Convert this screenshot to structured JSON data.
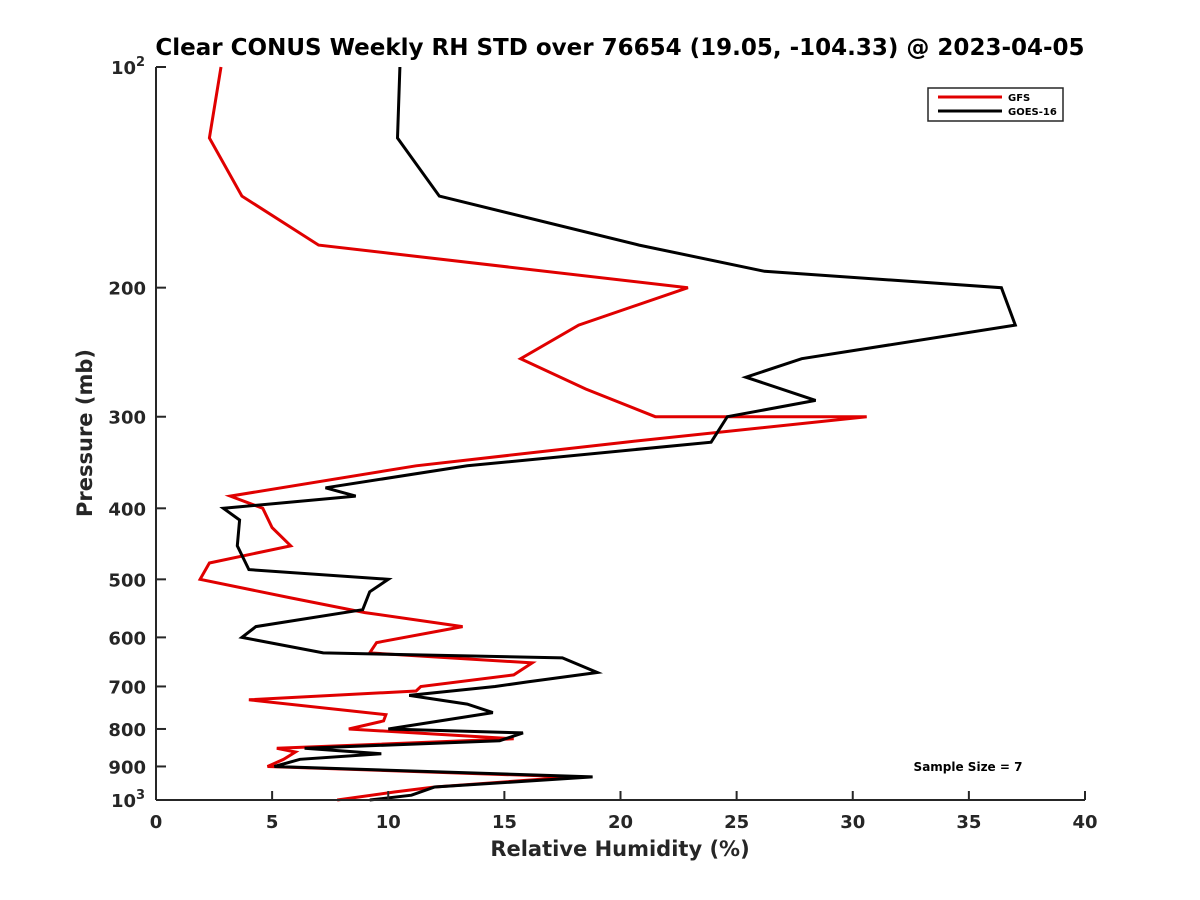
{
  "chart_data": {
    "type": "line",
    "title": "Clear CONUS Weekly RH STD over 76654 (19.05, -104.33) @ 2023-04-05",
    "xlabel": "Relative Humidity (%)",
    "ylabel": "Pressure (mb)",
    "xlim": [
      0,
      40
    ],
    "ylim": [
      100,
      1000
    ],
    "yscale": "log",
    "y_reversed": true,
    "grid": false,
    "legend_position": "top-right",
    "annotation": "Sample Size = 7",
    "x_ticks": [
      {
        "value": 0,
        "label": "0"
      },
      {
        "value": 5,
        "label": "5"
      },
      {
        "value": 10,
        "label": "10"
      },
      {
        "value": 15,
        "label": "15"
      },
      {
        "value": 20,
        "label": "20"
      },
      {
        "value": 25,
        "label": "25"
      },
      {
        "value": 30,
        "label": "30"
      },
      {
        "value": 35,
        "label": "35"
      },
      {
        "value": 40,
        "label": "40"
      }
    ],
    "y_ticks": [
      {
        "value": 100,
        "label": "10",
        "sup": "2"
      },
      {
        "value": 200,
        "label": "200",
        "sup": ""
      },
      {
        "value": 300,
        "label": "300",
        "sup": ""
      },
      {
        "value": 400,
        "label": "400",
        "sup": ""
      },
      {
        "value": 500,
        "label": "500",
        "sup": ""
      },
      {
        "value": 600,
        "label": "600",
        "sup": ""
      },
      {
        "value": 700,
        "label": "700",
        "sup": ""
      },
      {
        "value": 800,
        "label": "800",
        "sup": ""
      },
      {
        "value": 900,
        "label": "900",
        "sup": ""
      },
      {
        "value": 1000,
        "label": "10",
        "sup": "3"
      }
    ],
    "series": [
      {
        "name": "GFS",
        "color": "#e00000",
        "points": [
          {
            "p": 100,
            "rh": 2.8
          },
          {
            "p": 125,
            "rh": 2.3
          },
          {
            "p": 150,
            "rh": 3.7
          },
          {
            "p": 175,
            "rh": 7.0
          },
          {
            "p": 200,
            "rh": 22.9
          },
          {
            "p": 225,
            "rh": 18.2
          },
          {
            "p": 250,
            "rh": 15.7
          },
          {
            "p": 275,
            "rh": 18.5
          },
          {
            "p": 300,
            "rh": 21.5
          },
          {
            "p": 300,
            "rh": 30.6
          },
          {
            "p": 325,
            "rh": 20.2
          },
          {
            "p": 350,
            "rh": 11.2
          },
          {
            "p": 385,
            "rh": 3.2
          },
          {
            "p": 400,
            "rh": 4.6
          },
          {
            "p": 425,
            "rh": 5.0
          },
          {
            "p": 450,
            "rh": 5.8
          },
          {
            "p": 475,
            "rh": 2.3
          },
          {
            "p": 500,
            "rh": 1.9
          },
          {
            "p": 530,
            "rh": 5.8
          },
          {
            "p": 555,
            "rh": 9.0
          },
          {
            "p": 580,
            "rh": 13.2
          },
          {
            "p": 610,
            "rh": 9.5
          },
          {
            "p": 630,
            "rh": 9.2
          },
          {
            "p": 650,
            "rh": 16.2
          },
          {
            "p": 675,
            "rh": 15.4
          },
          {
            "p": 700,
            "rh": 11.4
          },
          {
            "p": 710,
            "rh": 11.2
          },
          {
            "p": 730,
            "rh": 4.0
          },
          {
            "p": 765,
            "rh": 9.9
          },
          {
            "p": 780,
            "rh": 9.8
          },
          {
            "p": 800,
            "rh": 8.3
          },
          {
            "p": 825,
            "rh": 15.4
          },
          {
            "p": 850,
            "rh": 5.2
          },
          {
            "p": 860,
            "rh": 6.0
          },
          {
            "p": 880,
            "rh": 5.5
          },
          {
            "p": 900,
            "rh": 4.8
          },
          {
            "p": 930,
            "rh": 18.0
          },
          {
            "p": 960,
            "rh": 12.0
          },
          {
            "p": 975,
            "rh": 10.3
          },
          {
            "p": 1000,
            "rh": 7.8
          }
        ]
      },
      {
        "name": "GOES-16",
        "color": "#000000",
        "points": [
          {
            "p": 100,
            "rh": 10.5
          },
          {
            "p": 125,
            "rh": 10.4
          },
          {
            "p": 150,
            "rh": 12.2
          },
          {
            "p": 175,
            "rh": 20.8
          },
          {
            "p": 190,
            "rh": 26.2
          },
          {
            "p": 200,
            "rh": 36.4
          },
          {
            "p": 225,
            "rh": 37.0
          },
          {
            "p": 250,
            "rh": 27.8
          },
          {
            "p": 265,
            "rh": 25.4
          },
          {
            "p": 285,
            "rh": 28.4
          },
          {
            "p": 300,
            "rh": 24.6
          },
          {
            "p": 325,
            "rh": 23.9
          },
          {
            "p": 350,
            "rh": 13.4
          },
          {
            "p": 375,
            "rh": 7.3
          },
          {
            "p": 385,
            "rh": 8.6
          },
          {
            "p": 400,
            "rh": 2.9
          },
          {
            "p": 415,
            "rh": 3.6
          },
          {
            "p": 450,
            "rh": 3.5
          },
          {
            "p": 485,
            "rh": 4.0
          },
          {
            "p": 500,
            "rh": 10.0
          },
          {
            "p": 520,
            "rh": 9.2
          },
          {
            "p": 550,
            "rh": 8.9
          },
          {
            "p": 580,
            "rh": 4.3
          },
          {
            "p": 600,
            "rh": 3.7
          },
          {
            "p": 630,
            "rh": 7.2
          },
          {
            "p": 640,
            "rh": 17.5
          },
          {
            "p": 670,
            "rh": 19.0
          },
          {
            "p": 690,
            "rh": 16.0
          },
          {
            "p": 700,
            "rh": 14.6
          },
          {
            "p": 720,
            "rh": 10.9
          },
          {
            "p": 740,
            "rh": 13.4
          },
          {
            "p": 760,
            "rh": 14.5
          },
          {
            "p": 800,
            "rh": 10.0
          },
          {
            "p": 810,
            "rh": 15.8
          },
          {
            "p": 830,
            "rh": 14.8
          },
          {
            "p": 850,
            "rh": 6.4
          },
          {
            "p": 865,
            "rh": 9.7
          },
          {
            "p": 880,
            "rh": 6.2
          },
          {
            "p": 900,
            "rh": 5.1
          },
          {
            "p": 930,
            "rh": 18.8
          },
          {
            "p": 960,
            "rh": 12.0
          },
          {
            "p": 985,
            "rh": 11.0
          },
          {
            "p": 1000,
            "rh": 9.2
          }
        ]
      }
    ]
  }
}
